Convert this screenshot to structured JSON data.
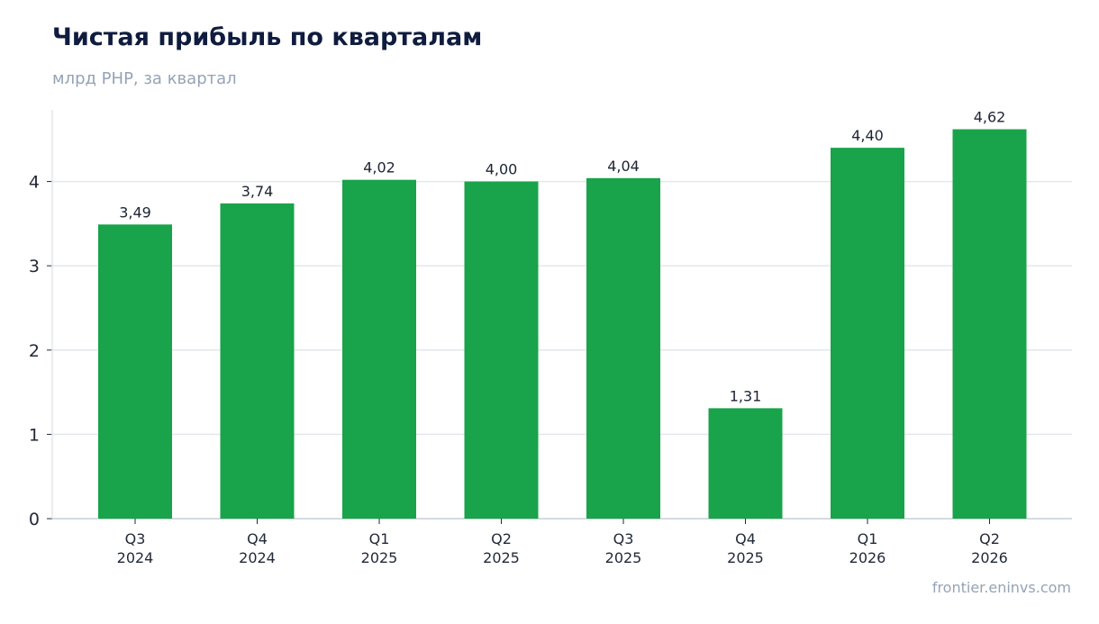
{
  "title": "Чистая прибыль по кварталам",
  "subtitle": "млрд PHP, за квартал",
  "source": "frontier.eninvs.com",
  "colors": {
    "bar": "#19a34a",
    "grid": "#e3e7ec",
    "axis": "#c9ced6",
    "text": "#222a38"
  },
  "chart_data": {
    "type": "bar",
    "categories": [
      [
        "Q3",
        "2024"
      ],
      [
        "Q4",
        "2024"
      ],
      [
        "Q1",
        "2025"
      ],
      [
        "Q2",
        "2025"
      ],
      [
        "Q3",
        "2025"
      ],
      [
        "Q4",
        "2025"
      ],
      [
        "Q1",
        "2026"
      ],
      [
        "Q2",
        "2026"
      ]
    ],
    "values": [
      3.49,
      3.74,
      4.02,
      4.0,
      4.04,
      1.31,
      4.4,
      4.62
    ],
    "value_labels": [
      "3,49",
      "3,74",
      "4,02",
      "4,00",
      "4,04",
      "1,31",
      "4,40",
      "4,62"
    ],
    "title": "Чистая прибыль по кварталам",
    "subtitle": "млрд PHP, за квартал",
    "xlabel": "",
    "ylabel": "",
    "ylim": [
      0,
      4.85
    ],
    "yticks": [
      0,
      1,
      2,
      3,
      4
    ],
    "grid": true,
    "legend": "none"
  }
}
